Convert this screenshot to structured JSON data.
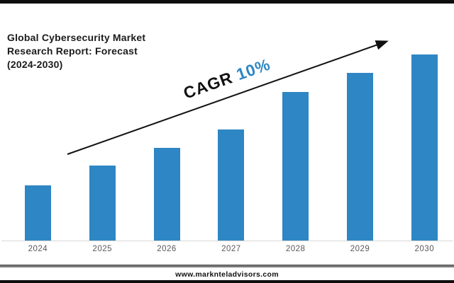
{
  "page": {
    "title": "Global Cybersecurity Market\nResearch Report: Forecast\n(2024-2030)",
    "footer": {
      "website": "www.marknteladvisors.com"
    }
  },
  "annotation": {
    "label": "CAGR",
    "value": "10%"
  },
  "colors": {
    "bar": "#2e86c4",
    "accent_blue": "#2e86c4",
    "title_text": "#1c1c1c",
    "axis_line": "#d8d8d8",
    "tick_text": "#595959",
    "arrow": "#111111",
    "top_bottom_bars": "#0d0d0d"
  },
  "chart_data": {
    "type": "bar",
    "title": "Global Cybersecurity Market Research Report: Forecast (2024-2030)",
    "categories": [
      "2024",
      "2025",
      "2026",
      "2027",
      "2028",
      "2029",
      "2030"
    ],
    "values": [
      78,
      106,
      131,
      157,
      210,
      237,
      263
    ],
    "value_note": "relative bar heights; chart shows no numeric y-axis",
    "annotation": "CAGR 10%",
    "xlabel": "",
    "ylabel": "",
    "grid": false,
    "legend": false,
    "bar_color": "#2e86c4"
  }
}
